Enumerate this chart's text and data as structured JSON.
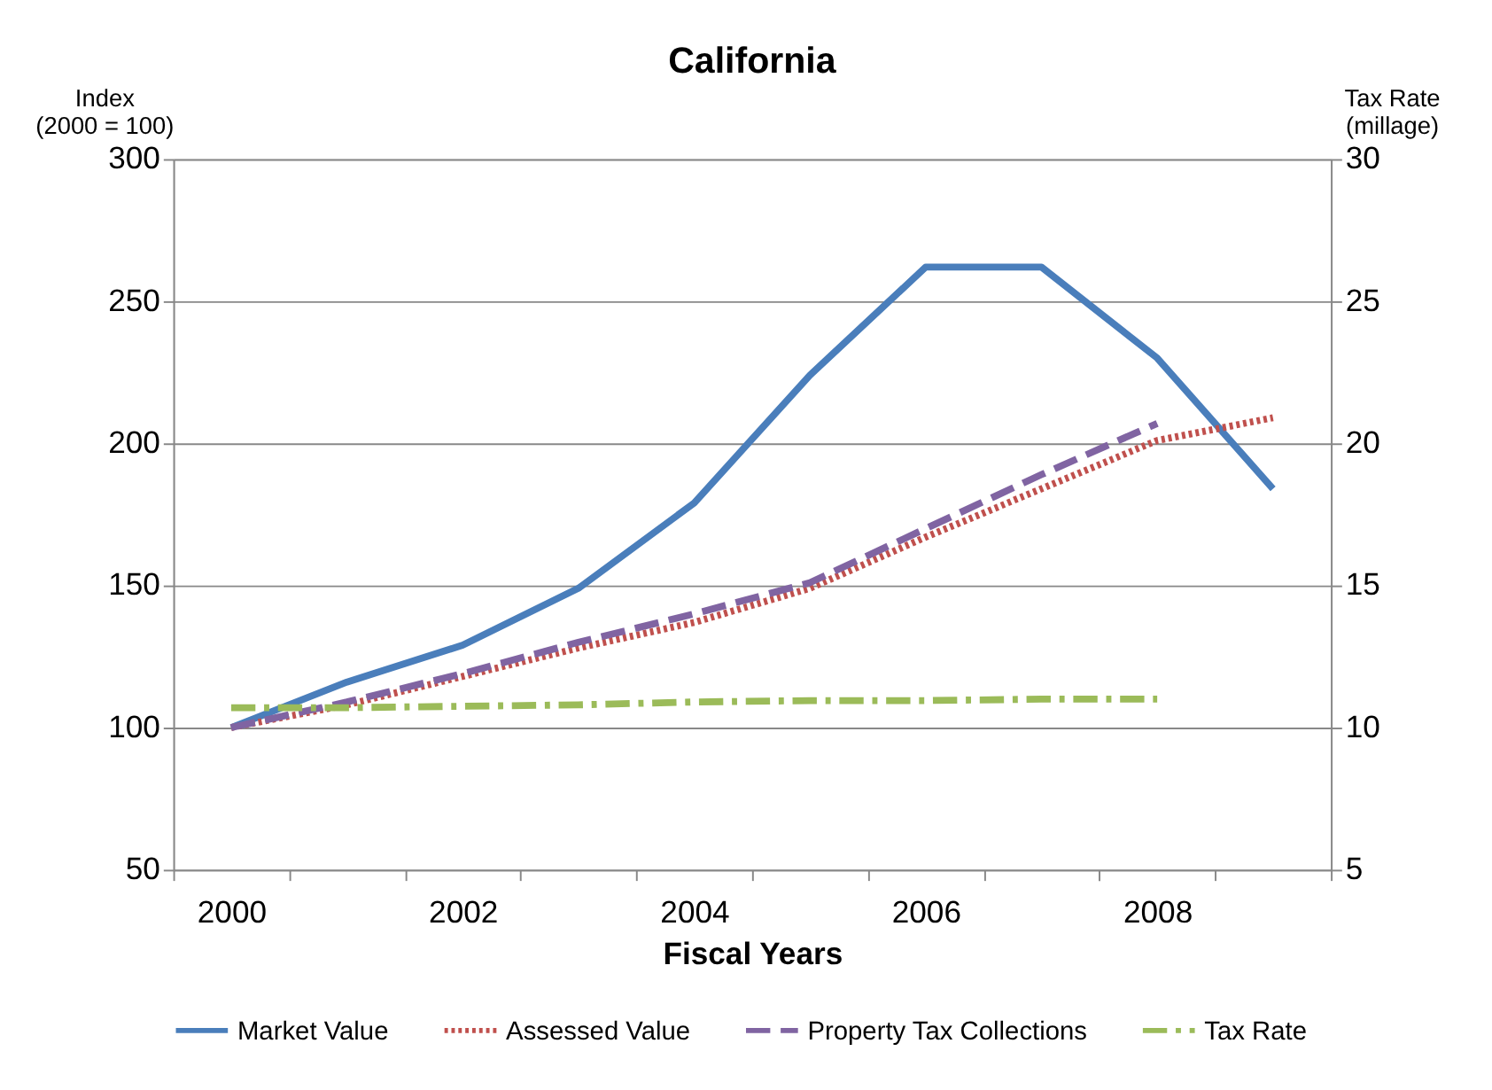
{
  "chart_data": {
    "type": "line",
    "title": "California",
    "xlabel": "Fiscal Years",
    "ylabel": "Index\n(2000 = 100)",
    "y2label": "Tax Rate\n(millage)",
    "categories": [
      "2000",
      null,
      "2002",
      null,
      "2004",
      null,
      "2006",
      null,
      "2008",
      null
    ],
    "ylim": [
      50,
      300
    ],
    "yticks": [
      50,
      100,
      150,
      200,
      250,
      300
    ],
    "y2lim": [
      5,
      30
    ],
    "y2ticks": [
      5,
      10,
      15,
      20,
      25,
      30
    ],
    "grid": "y",
    "legend": "bottom",
    "marker": "none",
    "series": [
      {
        "name": "Market Value",
        "color": "#4a7ebb",
        "line_style": "solid",
        "values": [
          100,
          116,
          129,
          149,
          179,
          224,
          262,
          262,
          230,
          184
        ]
      },
      {
        "name": "Assessed Value",
        "color": "#c0504d",
        "line_style": "dotted",
        "values": [
          100,
          108,
          118,
          128,
          137,
          149,
          167,
          184,
          201,
          209
        ]
      },
      {
        "name": "Property Tax Collections",
        "color": "#8064a2",
        "line_style": "dashed",
        "values": [
          100,
          109,
          119,
          130,
          140,
          151,
          170,
          189,
          207,
          null
        ]
      },
      {
        "name": "Tax Rate",
        "color": "#9bbb59",
        "line_style": "dashdot",
        "axis": "y2",
        "values": [
          10.7,
          10.7,
          10.75,
          10.8,
          10.9,
          10.95,
          10.95,
          11.0,
          11.0,
          null
        ]
      }
    ]
  }
}
